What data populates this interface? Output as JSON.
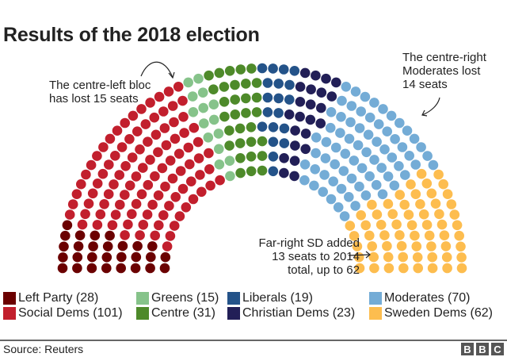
{
  "chart_data": {
    "type": "hemicycle",
    "title": "Results of the 2018 election",
    "total_seats": 349,
    "rows": 8,
    "parties": [
      {
        "name": "Left Party",
        "seats": 28,
        "color": "#6b0000"
      },
      {
        "name": "Social Dems",
        "seats": 101,
        "color": "#c21f2d"
      },
      {
        "name": "Greens",
        "seats": 15,
        "color": "#86c38a"
      },
      {
        "name": "Centre",
        "seats": 31,
        "color": "#4e8a2a"
      },
      {
        "name": "Liberals",
        "seats": 19,
        "color": "#245389"
      },
      {
        "name": "Christian Dems",
        "seats": 23,
        "color": "#221f57"
      },
      {
        "name": "Moderates",
        "seats": 70,
        "color": "#74acd6"
      },
      {
        "name": "Sweden Dems",
        "seats": 62,
        "color": "#fdbd4f"
      }
    ],
    "annotations": [
      {
        "id": "left",
        "lines": [
          "The centre-left bloc",
          "has lost 15 seats"
        ]
      },
      {
        "id": "right",
        "lines": [
          "The centre-right",
          "Moderates lost",
          "14 seats"
        ]
      },
      {
        "id": "sd",
        "lines": [
          "Far-right SD added",
          "13 seats to 2014",
          "total, up to 62"
        ]
      }
    ]
  },
  "legend": [
    {
      "label": "Left Party (28)",
      "color": "#6b0000"
    },
    {
      "label": "Social Dems (101)",
      "color": "#c21f2d"
    },
    {
      "label": "Greens (15)",
      "color": "#86c38a"
    },
    {
      "label": "Centre (31)",
      "color": "#4e8a2a"
    },
    {
      "label": "Liberals (19)",
      "color": "#245389"
    },
    {
      "label": "Christian Dems (23)",
      "color": "#221f57"
    },
    {
      "label": "Moderates (70)",
      "color": "#74acd6"
    },
    {
      "label": "Sweden Dems (62)",
      "color": "#fdbd4f"
    }
  ],
  "footer": {
    "source": "Source: Reuters",
    "logo": [
      "B",
      "B",
      "C"
    ]
  }
}
